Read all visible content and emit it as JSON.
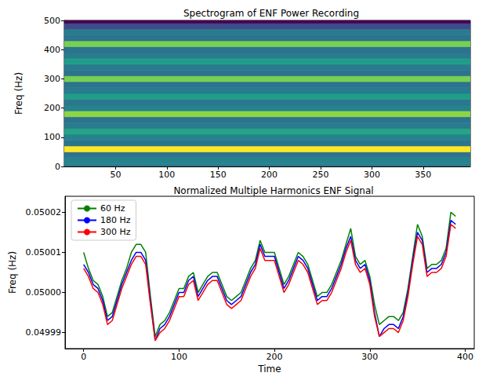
{
  "chart_data": [
    {
      "type": "heatmap",
      "title": "Spectrogram of ENF Power Recording",
      "ylabel": "Freq (Hz)",
      "xlim": [
        0,
        396
      ],
      "xticks": [
        50,
        100,
        150,
        200,
        250,
        300,
        350
      ],
      "ylim": [
        0,
        500
      ],
      "yticks": [
        0,
        100,
        200,
        300,
        400,
        500
      ],
      "grid": false,
      "time_bins": [
        0,
        396
      ],
      "freq_bins": [
        -10,
        10,
        30,
        50,
        70,
        90,
        110,
        130,
        150,
        170,
        190,
        210,
        230,
        250,
        270,
        290,
        310,
        330,
        350,
        370,
        390,
        410,
        430,
        450,
        470,
        490,
        510
      ],
      "cells": [
        [
          -36
        ],
        [
          -34
        ],
        [
          -38
        ],
        [
          -2
        ],
        [
          -38
        ],
        [
          -34
        ],
        [
          -26
        ],
        [
          -36
        ],
        [
          -38
        ],
        [
          -12
        ],
        [
          -34
        ],
        [
          -37
        ],
        [
          -28
        ],
        [
          -36
        ],
        [
          -38
        ],
        [
          -14
        ],
        [
          -38
        ],
        [
          -36
        ],
        [
          -28
        ],
        [
          -36
        ],
        [
          -38
        ],
        [
          -14
        ],
        [
          -38
        ],
        [
          -36
        ],
        [
          -46
        ],
        [
          -60
        ]
      ]
    },
    {
      "type": "line",
      "title": "Normalized Multiple Harmonics ENF Signal",
      "xlabel": "Time",
      "ylabel": "Freq (Hz)",
      "xlim": [
        -19.5,
        409.5
      ],
      "xticks": [
        0,
        100,
        200,
        300,
        400
      ],
      "ylim": [
        0.049986,
        0.050024
      ],
      "yticks": [
        0.04999,
        {
          "value": 0.05,
          "label": "0.05000"
        },
        0.05001,
        0.05002
      ],
      "grid": false,
      "legend": "upper left",
      "x": [
        0,
        5,
        10,
        15,
        20,
        25,
        30,
        35,
        40,
        45,
        50,
        55,
        60,
        65,
        70,
        75,
        80,
        85,
        90,
        95,
        100,
        105,
        110,
        115,
        120,
        125,
        130,
        135,
        140,
        145,
        150,
        155,
        160,
        165,
        170,
        175,
        180,
        185,
        190,
        195,
        200,
        205,
        210,
        215,
        220,
        225,
        230,
        235,
        240,
        245,
        250,
        255,
        260,
        265,
        270,
        275,
        280,
        285,
        290,
        295,
        300,
        305,
        310,
        315,
        320,
        325,
        330,
        335,
        340,
        345,
        350,
        355,
        360,
        365,
        370,
        375,
        380,
        385,
        390
      ],
      "series": [
        {
          "name": "60 Hz",
          "color": "#008000",
          "values": [
            0.05001,
            0.050006,
            0.050003,
            0.050002,
            0.049999,
            0.049994,
            0.049995,
            0.049999,
            0.050003,
            0.050006,
            0.05001,
            0.050012,
            0.050012,
            0.05001,
            0.049999,
            0.049989,
            0.049992,
            0.049993,
            0.049995,
            0.049998,
            0.050001,
            0.050001,
            0.050004,
            0.050005,
            0.05,
            0.050002,
            0.050004,
            0.050005,
            0.050005,
            0.050002,
            0.049999,
            0.049998,
            0.049999,
            0.05,
            0.050003,
            0.050006,
            0.050008,
            0.050013,
            0.05001,
            0.05001,
            0.05001,
            0.050006,
            0.050002,
            0.050004,
            0.050007,
            0.05001,
            0.050009,
            0.050007,
            0.050003,
            0.049999,
            0.05,
            0.05,
            0.050002,
            0.050005,
            0.050008,
            0.050012,
            0.050016,
            0.050009,
            0.050007,
            0.050008,
            0.050004,
            0.049997,
            0.049992,
            0.049993,
            0.049994,
            0.049994,
            0.049993,
            0.049995,
            0.050001,
            0.050009,
            0.050017,
            0.050014,
            0.050006,
            0.050007,
            0.050007,
            0.050008,
            0.050011,
            0.05002,
            0.050019
          ]
        },
        {
          "name": "180 Hz",
          "color": "#0000ff",
          "values": [
            0.050007,
            0.050005,
            0.050002,
            0.050001,
            0.049998,
            0.049993,
            0.049994,
            0.049998,
            0.050002,
            0.050005,
            0.050008,
            0.05001,
            0.05001,
            0.050008,
            0.049998,
            0.049988,
            0.049991,
            0.049992,
            0.049994,
            0.049997,
            0.05,
            0.05,
            0.050003,
            0.050004,
            0.049999,
            0.050001,
            0.050003,
            0.050004,
            0.050004,
            0.050001,
            0.049998,
            0.049997,
            0.049998,
            0.049999,
            0.050002,
            0.050005,
            0.050007,
            0.050012,
            0.050009,
            0.050009,
            0.050009,
            0.050005,
            0.050001,
            0.050003,
            0.050006,
            0.050009,
            0.050008,
            0.050006,
            0.050002,
            0.049998,
            0.049999,
            0.049999,
            0.050001,
            0.050004,
            0.050007,
            0.050011,
            0.050014,
            0.050008,
            0.050006,
            0.050007,
            0.050003,
            0.049995,
            0.049989,
            0.049991,
            0.049992,
            0.049992,
            0.049991,
            0.049994,
            0.05,
            0.050008,
            0.050015,
            0.050013,
            0.050005,
            0.050006,
            0.050006,
            0.050007,
            0.05001,
            0.050018,
            0.050017
          ]
        },
        {
          "name": "300 Hz",
          "color": "#ff0000",
          "values": [
            0.050006,
            0.050004,
            0.050001,
            0.05,
            0.049997,
            0.049992,
            0.049993,
            0.049997,
            0.050001,
            0.050004,
            0.050007,
            0.050009,
            0.050009,
            0.050007,
            0.049997,
            0.049988,
            0.04999,
            0.049991,
            0.049993,
            0.049996,
            0.049999,
            0.049999,
            0.050002,
            0.050003,
            0.049998,
            0.05,
            0.050002,
            0.050003,
            0.050003,
            0.05,
            0.049997,
            0.049996,
            0.049997,
            0.049998,
            0.050001,
            0.050004,
            0.050006,
            0.050011,
            0.050008,
            0.050008,
            0.050008,
            0.050004,
            0.05,
            0.050002,
            0.050005,
            0.050008,
            0.050007,
            0.050005,
            0.050001,
            0.049997,
            0.049998,
            0.049998,
            0.05,
            0.050003,
            0.050006,
            0.05001,
            0.050013,
            0.050007,
            0.050005,
            0.050006,
            0.050002,
            0.049994,
            0.049989,
            0.04999,
            0.049991,
            0.049991,
            0.04999,
            0.049993,
            0.049999,
            0.050007,
            0.050014,
            0.050012,
            0.050004,
            0.050005,
            0.050005,
            0.050006,
            0.050009,
            0.050017,
            0.050016
          ]
        }
      ]
    }
  ]
}
